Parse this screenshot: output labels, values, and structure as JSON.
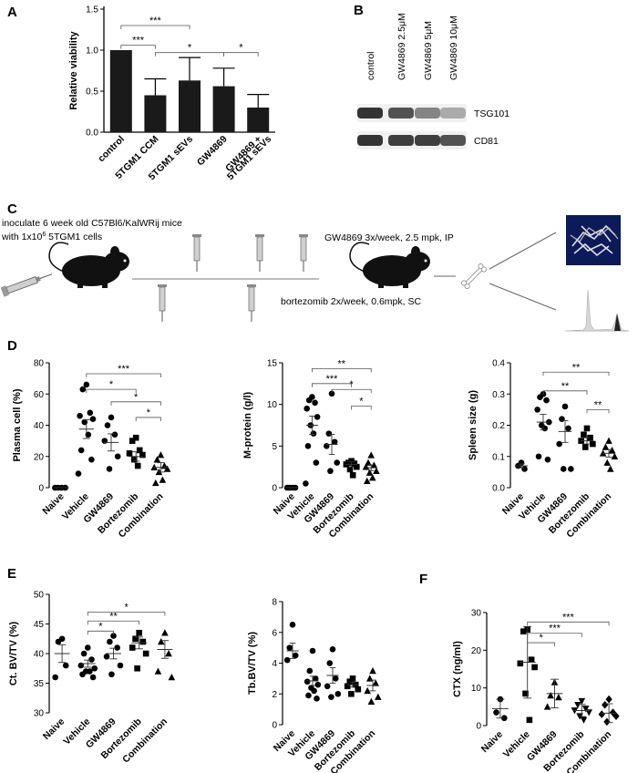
{
  "figure": {
    "panel_letters": [
      "A",
      "B",
      "C",
      "D",
      "E",
      "F"
    ],
    "panel_C": {
      "inoculate_line1": "inoculate 6 week old C57Bl6/KalWRij mice",
      "inoculate_line2": "with 1x10",
      "inoculate_sup": "6",
      "inoculate_line2b": " 5TGM1 cells",
      "gw_treatment": "GW4869 3x/week, 2.5 mpk, IP",
      "bz_treatment": "bortezomib 2x/week, 0.6mpk, SC"
    },
    "panel_B": {
      "lanes": [
        "control",
        "GW4869 2.5μM",
        "GW4869 5μM",
        "GW4869 10μM"
      ],
      "bands": [
        {
          "name": "TSG101",
          "intensity": [
            0.9,
            0.75,
            0.5,
            0.3
          ]
        },
        {
          "name": "CD81",
          "intensity": [
            0.9,
            0.85,
            0.85,
            0.75
          ]
        }
      ]
    }
  },
  "chart_data": [
    {
      "panel": "A",
      "type": "bar",
      "ylabel": "Relative viability",
      "ylim": [
        0,
        1.5
      ],
      "yticks": [
        0.0,
        0.5,
        1.0,
        1.5
      ],
      "ytick_labels": [
        "0.0",
        "0.5",
        "1.0",
        "1.5"
      ],
      "categories": [
        "control",
        "5TGM1 CCM",
        "5TGM1 sEVs",
        "GW4869",
        "GW4869 +\n5TGM1 sEVs"
      ],
      "category_lines": [
        [
          "control"
        ],
        [
          "5TGM1 CCM"
        ],
        [
          "5TGM1 sEVs"
        ],
        [
          "GW4869"
        ],
        [
          "GW4869 +",
          "5TGM1 sEVs"
        ]
      ],
      "values": [
        1.0,
        0.45,
        0.63,
        0.56,
        0.3
      ],
      "errors": [
        0.0,
        0.2,
        0.28,
        0.22,
        0.16
      ],
      "significance": [
        {
          "from": 0,
          "to": 2,
          "label": "***",
          "y": 1.3
        },
        {
          "from": 0,
          "to": 1,
          "label": "***",
          "y": 1.06
        },
        {
          "from": 1,
          "to": 3,
          "label": "*",
          "y": 0.97
        },
        {
          "from": 3,
          "to": 4,
          "label": "*",
          "y": 0.97
        }
      ]
    },
    {
      "panel": "D",
      "type": "scatter",
      "ylabel": "Plasma cell (%)",
      "ylim": [
        0,
        80
      ],
      "yticks": [
        0,
        20,
        40,
        60,
        80
      ],
      "ytick_labels": [
        "0",
        "20",
        "40",
        "60",
        "80"
      ],
      "categories": [
        "Naive",
        "Vehicle",
        "GW4869",
        "Bortezomib",
        "Combination"
      ],
      "markers": [
        "circle",
        "circle",
        "circle",
        "square",
        "triangle"
      ],
      "points": [
        [
          0,
          0,
          0,
          0
        ],
        [
          66,
          63,
          48,
          46,
          44,
          42,
          34,
          24,
          18,
          9
        ],
        [
          45,
          40,
          34,
          30,
          20,
          12
        ],
        [
          32,
          30,
          24,
          22,
          21,
          18,
          14
        ],
        [
          21,
          18,
          14,
          13,
          12,
          10,
          5,
          3
        ]
      ],
      "means": [
        0,
        37.5,
        29,
        20,
        13
      ],
      "sem": [
        0,
        6,
        5.5,
        3,
        3
      ],
      "significance": [
        {
          "from": 1,
          "to": 4,
          "label": "***",
          "y": 73
        },
        {
          "from": 1,
          "to": 3,
          "label": "*",
          "y": 63
        },
        {
          "from": 2,
          "to": 4,
          "label": "*",
          "y": 55
        },
        {
          "from": 3,
          "to": 4,
          "label": "*",
          "y": 45
        }
      ]
    },
    {
      "panel": "D",
      "type": "scatter",
      "ylabel": "M-protein (g/l)",
      "ylim": [
        0,
        15
      ],
      "yticks": [
        0,
        5,
        10,
        15
      ],
      "ytick_labels": [
        "0",
        "5",
        "10",
        "15"
      ],
      "categories": [
        "Naive",
        "Vehicle",
        "GW4869",
        "Bortezomib",
        "Combination"
      ],
      "markers": [
        "circle",
        "circle",
        "circle",
        "square",
        "triangle"
      ],
      "points": [
        [
          0,
          0,
          0,
          0
        ],
        [
          10.9,
          10.5,
          10.2,
          9.5,
          8.5,
          7.5,
          6.5,
          5.0,
          3.0,
          0.5
        ],
        [
          11.3,
          6.5,
          5.5,
          5.0,
          3.0,
          2.0
        ],
        [
          3.2,
          3.0,
          2.9,
          2.8,
          2.5,
          2.2,
          1.5
        ],
        [
          3.9,
          3.0,
          2.7,
          2.5,
          2.0,
          1.8,
          1.2,
          0.8
        ]
      ],
      "means": [
        0,
        7.5,
        5.2,
        2.8,
        2.4
      ],
      "sem": [
        0,
        1.1,
        1.2,
        0.3,
        0.35
      ],
      "significance": [
        {
          "from": 1,
          "to": 4,
          "label": "**",
          "y": 14.3
        },
        {
          "from": 1,
          "to": 3,
          "label": "***",
          "y": 12.5
        },
        {
          "from": 2,
          "to": 4,
          "label": "*",
          "y": 11.8
        },
        {
          "from": 3,
          "to": 4,
          "label": "*",
          "y": 9.8
        }
      ]
    },
    {
      "panel": "D",
      "type": "scatter",
      "ylabel": "Spleen size (g)",
      "ylim": [
        0,
        0.4
      ],
      "yticks": [
        0.0,
        0.1,
        0.2,
        0.3,
        0.4
      ],
      "ytick_labels": [
        "0.0",
        "0.1",
        "0.2",
        "0.3",
        "0.4"
      ],
      "categories": [
        "Naive",
        "Vehicle",
        "GW4869",
        "Bortezomib",
        "Combination"
      ],
      "markers": [
        "circle",
        "circle",
        "circle",
        "square",
        "triangle"
      ],
      "points": [
        [
          0.08,
          0.07,
          0.06
        ],
        [
          0.3,
          0.29,
          0.28,
          0.25,
          0.21,
          0.2,
          0.19,
          0.1,
          0.09
        ],
        [
          0.26,
          0.22,
          0.19,
          0.14,
          0.06,
          0.06
        ],
        [
          0.19,
          0.17,
          0.16,
          0.15,
          0.14,
          0.13
        ],
        [
          0.15,
          0.13,
          0.12,
          0.11,
          0.1,
          0.08,
          0.06
        ]
      ],
      "means": [
        0.07,
        0.21,
        0.18,
        0.15,
        0.11
      ],
      "sem": [
        0.006,
        0.025,
        0.035,
        0.01,
        0.012
      ],
      "significance": [
        {
          "from": 1,
          "to": 4,
          "label": "**",
          "y": 0.37
        },
        {
          "from": 1,
          "to": 3,
          "label": "**",
          "y": 0.31
        },
        {
          "from": 3,
          "to": 4,
          "label": "**",
          "y": 0.25
        }
      ]
    },
    {
      "panel": "E",
      "type": "scatter",
      "ylabel": "Ct. BV/TV (%)",
      "ylim": [
        30,
        50
      ],
      "yticks": [
        30,
        35,
        40,
        45,
        50
      ],
      "ytick_labels": [
        "30",
        "35",
        "40",
        "45",
        "50"
      ],
      "categories": [
        "Naive",
        "Vehicle",
        "GW4869",
        "Bortezomib",
        "Combination"
      ],
      "markers": [
        "circle",
        "circle",
        "circle",
        "square",
        "triangle"
      ],
      "points": [
        [
          42.5,
          42.0,
          38.0,
          36.0
        ],
        [
          41.0,
          40.0,
          39.0,
          38.0,
          37.5,
          37.0,
          37.0,
          36.5,
          36.0
        ],
        [
          43.0,
          42.0,
          41.0,
          39.5,
          38.0,
          36.5
        ],
        [
          43.5,
          42.5,
          42.0,
          41.0,
          40.0,
          37.5
        ],
        [
          43.5,
          42.0,
          40.0,
          37.0,
          36.0
        ]
      ],
      "means": [
        40.0,
        38.3,
        40.0,
        41.8,
        40.7
      ],
      "sem": [
        1.5,
        0.6,
        0.9,
        1.0,
        1.5
      ],
      "significance": [
        {
          "from": 1,
          "to": 4,
          "label": "*",
          "y": 47.0
        },
        {
          "from": 1,
          "to": 3,
          "label": "**",
          "y": 45.5
        },
        {
          "from": 1,
          "to": 2,
          "label": "*",
          "y": 43.8
        }
      ]
    },
    {
      "panel": "E",
      "type": "scatter",
      "ylabel": "Tb.BV/TV (%)",
      "ylim": [
        0,
        8
      ],
      "yticks": [
        0,
        2,
        4,
        6,
        8
      ],
      "ytick_labels": [
        "0",
        "2",
        "4",
        "6",
        "8"
      ],
      "categories": [
        "Naive",
        "Vehicle",
        "GW4869",
        "Bortezomib",
        "Combination"
      ],
      "markers": [
        "circle",
        "circle",
        "circle",
        "square",
        "triangle"
      ],
      "points": [
        [
          6.5,
          5.0,
          4.5,
          4.2
        ],
        [
          4.8,
          3.5,
          3.0,
          2.8,
          2.6,
          2.4,
          2.2,
          1.9,
          1.7
        ],
        [
          4.9,
          4.0,
          3.0,
          2.5,
          2.0,
          1.8
        ],
        [
          3.0,
          2.8,
          2.6,
          2.5,
          2.3,
          2.0
        ],
        [
          3.5,
          3.0,
          2.7,
          2.2,
          1.8,
          1.5
        ]
      ],
      "means": [
        4.8,
        2.85,
        3.2,
        2.6,
        2.55
      ],
      "sem": [
        0.5,
        0.3,
        0.5,
        0.15,
        0.35
      ],
      "significance": []
    },
    {
      "panel": "F",
      "type": "scatter",
      "ylabel": "CTX (ng/ml)",
      "ylim": [
        0,
        30
      ],
      "yticks": [
        0,
        10,
        20,
        30
      ],
      "ytick_labels": [
        "0",
        "10",
        "20",
        "30"
      ],
      "categories": [
        "Naive",
        "Vehicle",
        "GW4869",
        "Bortezomib",
        "Combination"
      ],
      "markers": [
        "circle",
        "square",
        "triangle",
        "inverted-triangle",
        "diamond"
      ],
      "points": [
        [
          7.0,
          3.5,
          2.0
        ],
        [
          25.5,
          25.0,
          17.5,
          16.5,
          15.5,
          8.5,
          1.5
        ],
        [
          11.5,
          8.0,
          7.5,
          5.0
        ],
        [
          6.5,
          5.5,
          4.5,
          4.0,
          3.5,
          2.5,
          1.5
        ],
        [
          7.0,
          5.5,
          3.5,
          3.0,
          2.5,
          1.0
        ]
      ],
      "means": [
        4.5,
        16.8,
        8.5,
        4.0,
        3.3
      ],
      "sem": [
        2.5,
        9.5,
        3.8,
        1.6,
        2.5
      ],
      "significance": [
        {
          "from": 1,
          "to": 4,
          "label": "***",
          "y": 27.5
        },
        {
          "from": 1,
          "to": 3,
          "label": "***",
          "y": 24.5
        },
        {
          "from": 1,
          "to": 2,
          "label": "*",
          "y": 22.0
        }
      ]
    }
  ]
}
